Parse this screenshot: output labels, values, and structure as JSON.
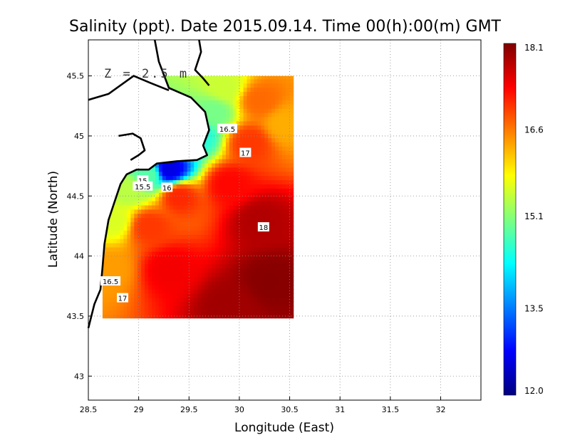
{
  "chart_data": {
    "type": "heatmap",
    "title": "Salinity (ppt). Date 2015.09.14. Time 00(h):00(m) GMT",
    "xlabel": "Longitude (East)",
    "ylabel": "Latitude (North)",
    "xlim": [
      28.5,
      32.4
    ],
    "ylim": [
      42.8,
      45.8
    ],
    "x_ticks": [
      "28.5",
      "29",
      "29.5",
      "30",
      "30.5",
      "31",
      "31.5",
      "32"
    ],
    "x_tick_values": [
      28.5,
      29,
      29.5,
      30,
      30.5,
      31,
      31.5,
      32
    ],
    "y_ticks": [
      "43",
      "43.5",
      "44",
      "44.5",
      "45",
      "45.5"
    ],
    "y_tick_values": [
      43,
      43.5,
      44,
      44.5,
      45,
      45.5
    ],
    "grid": true,
    "grid_style": "dotted",
    "depth_label": "Z = 2.5 m",
    "colorbar": {
      "min": 12.0,
      "max": 18.1,
      "tick_labels": [
        "18.1",
        "16.6",
        "15.1",
        "13.5",
        "12.0"
      ],
      "tick_values": [
        18.1,
        16.6,
        15.1,
        13.5,
        12.0
      ],
      "colors": [
        "#00007f",
        "#0000ff",
        "#007fff",
        "#00ffff",
        "#7fff7f",
        "#ffff00",
        "#ff7f00",
        "#ff0000",
        "#7f0000"
      ]
    },
    "data_domain": {
      "lon": [
        28.64,
        30.54
      ],
      "lat": [
        43.48,
        45.5
      ]
    },
    "contour_labels": [
      {
        "text": "16.5",
        "lon": 29.88,
        "lat": 45.06
      },
      {
        "text": "17",
        "lon": 30.06,
        "lat": 44.86
      },
      {
        "text": "15",
        "lon": 29.04,
        "lat": 44.63
      },
      {
        "text": "15.5",
        "lon": 29.04,
        "lat": 44.58
      },
      {
        "text": "16",
        "lon": 29.28,
        "lat": 44.57
      },
      {
        "text": "18",
        "lon": 30.24,
        "lat": 44.24
      },
      {
        "text": "16.5",
        "lon": 28.72,
        "lat": 43.79
      },
      {
        "text": "17",
        "lon": 28.84,
        "lat": 43.65
      }
    ],
    "field_samples": [
      {
        "lon": 29.85,
        "lat": 45.4,
        "value": 15.5
      },
      {
        "lon": 29.75,
        "lat": 45.2,
        "value": 15.0
      },
      {
        "lon": 29.6,
        "lat": 45.0,
        "value": 14.5
      },
      {
        "lon": 29.3,
        "lat": 44.72,
        "value": 12.6
      },
      {
        "lon": 29.1,
        "lat": 44.68,
        "value": 14.8
      },
      {
        "lon": 28.9,
        "lat": 44.55,
        "value": 15.4
      },
      {
        "lon": 28.75,
        "lat": 44.3,
        "value": 15.6
      },
      {
        "lon": 28.7,
        "lat": 43.9,
        "value": 16.4
      },
      {
        "lon": 30.2,
        "lat": 45.3,
        "value": 16.7
      },
      {
        "lon": 30.45,
        "lat": 45.1,
        "value": 16.3
      },
      {
        "lon": 30.1,
        "lat": 44.95,
        "value": 17.0
      },
      {
        "lon": 29.9,
        "lat": 44.6,
        "value": 17.3
      },
      {
        "lon": 30.2,
        "lat": 44.3,
        "value": 17.8
      },
      {
        "lon": 30.3,
        "lat": 43.8,
        "value": 18.05
      },
      {
        "lon": 29.9,
        "lat": 43.6,
        "value": 17.9
      },
      {
        "lon": 29.3,
        "lat": 43.9,
        "value": 17.4
      },
      {
        "lon": 29.1,
        "lat": 44.25,
        "value": 17.0
      },
      {
        "lon": 29.4,
        "lat": 44.5,
        "value": 17.1
      }
    ],
    "coastline": [
      [
        [
          29.16,
          45.8
        ],
        [
          29.2,
          45.62
        ],
        [
          29.3,
          45.4
        ],
        [
          29.52,
          45.32
        ],
        [
          29.66,
          45.2
        ],
        [
          29.7,
          45.05
        ],
        [
          29.64,
          44.92
        ],
        [
          29.68,
          44.84
        ],
        [
          29.58,
          44.8
        ],
        [
          29.38,
          44.79
        ],
        [
          29.18,
          44.77
        ],
        [
          29.1,
          44.72
        ],
        [
          28.98,
          44.72
        ],
        [
          28.88,
          44.68
        ],
        [
          28.82,
          44.6
        ],
        [
          28.76,
          44.45
        ],
        [
          28.7,
          44.3
        ],
        [
          28.66,
          44.1
        ],
        [
          28.64,
          43.9
        ],
        [
          28.62,
          43.72
        ],
        [
          28.56,
          43.6
        ],
        [
          28.5,
          43.4
        ]
      ],
      [
        [
          28.5,
          45.3
        ],
        [
          28.7,
          45.35
        ],
        [
          28.95,
          45.5
        ],
        [
          29.12,
          45.44
        ],
        [
          29.3,
          45.38
        ]
      ],
      [
        [
          29.6,
          45.8
        ],
        [
          29.62,
          45.7
        ],
        [
          29.56,
          45.55
        ],
        [
          29.64,
          45.48
        ],
        [
          29.7,
          45.42
        ]
      ],
      [
        [
          28.8,
          45.0
        ],
        [
          28.94,
          45.02
        ],
        [
          29.02,
          44.98
        ],
        [
          29.06,
          44.88
        ],
        [
          29.0,
          44.84
        ],
        [
          28.92,
          44.8
        ]
      ]
    ]
  }
}
